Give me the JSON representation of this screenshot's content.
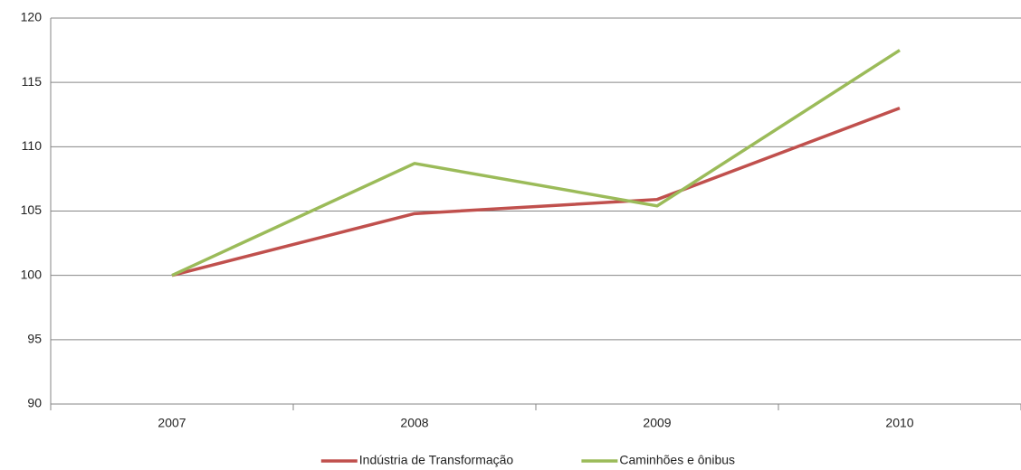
{
  "chart_data": {
    "type": "line",
    "categories": [
      "2007",
      "2008",
      "2009",
      "2010"
    ],
    "series": [
      {
        "name": "Indústria de Transformação",
        "color": "#c0504d",
        "values": [
          100,
          104.8,
          105.9,
          113.0
        ]
      },
      {
        "name": "Caminhões e ônibus",
        "color": "#9bbb59",
        "values": [
          100,
          108.7,
          105.4,
          117.5
        ]
      }
    ],
    "ylim": [
      90,
      120
    ],
    "yticks": [
      90,
      95,
      100,
      105,
      110,
      115,
      120
    ],
    "grid": true,
    "legend": "bottom"
  }
}
